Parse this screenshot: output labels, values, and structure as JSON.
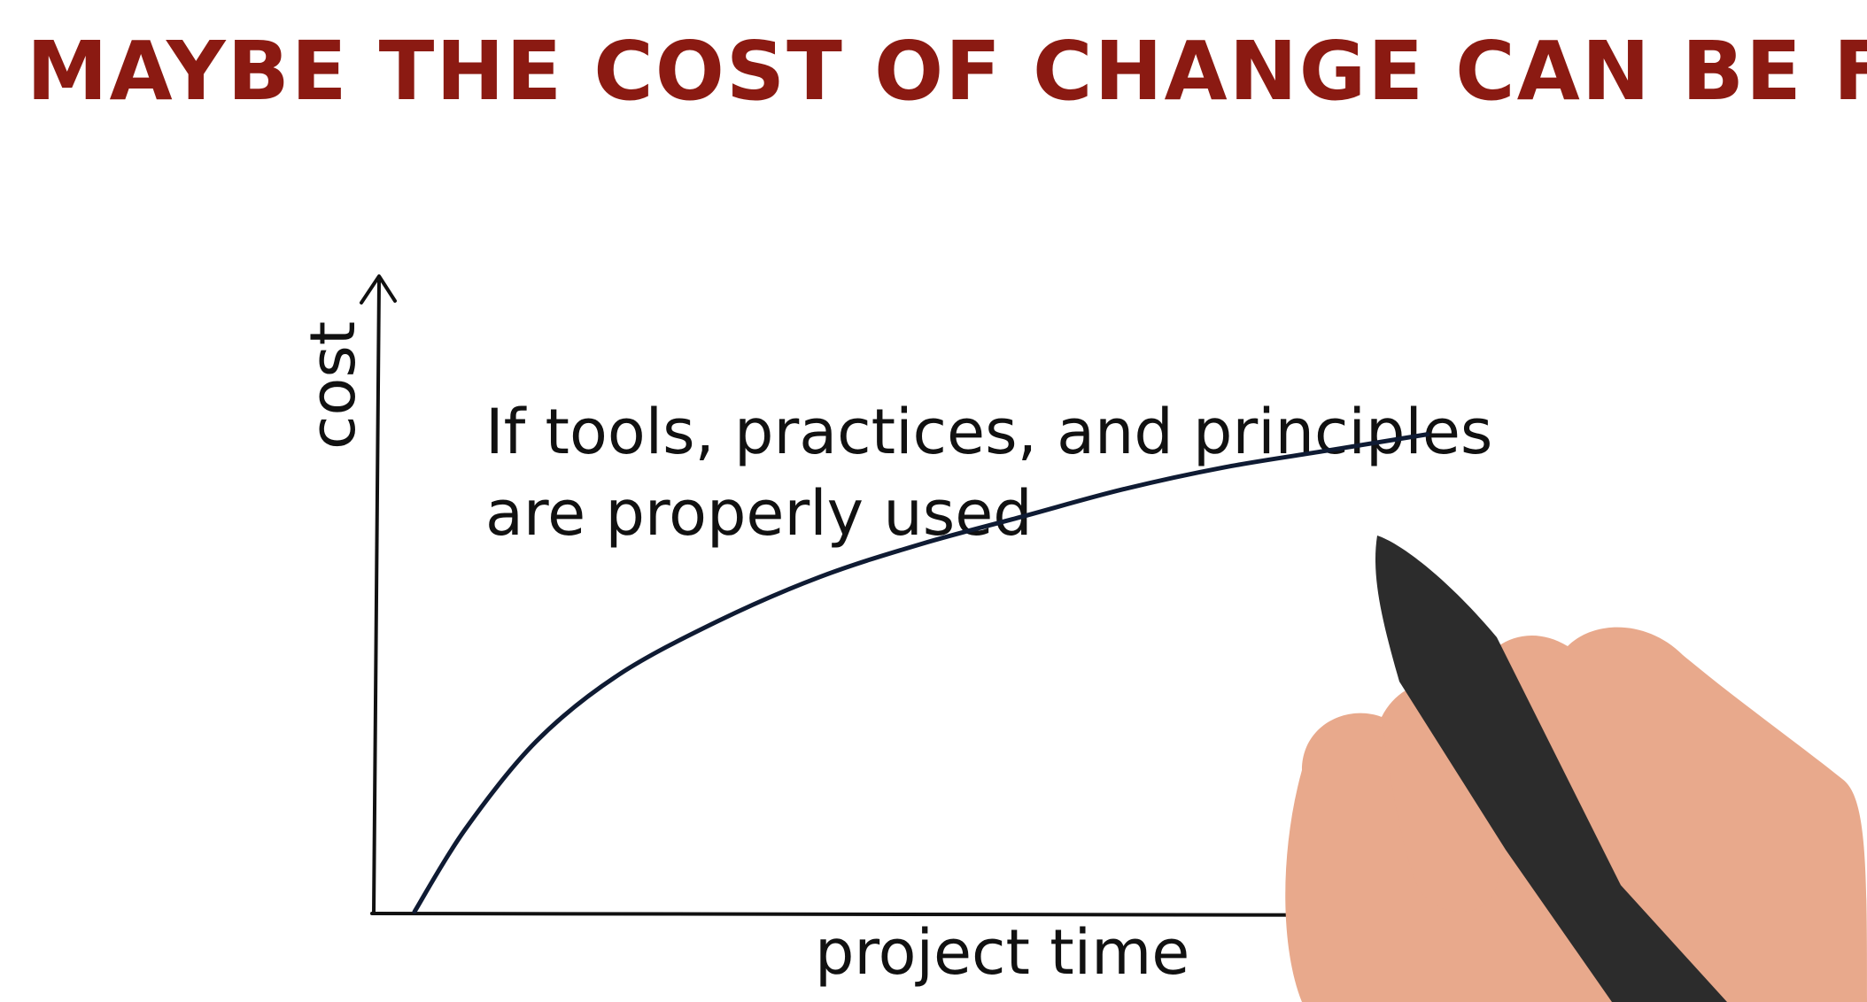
{
  "title": "MAYBE THE COST OF CHANGE CAN BE FLAT ?",
  "annotation": {
    "line1": "If tools, practices, and principles",
    "line2": "are properly used"
  },
  "colors": {
    "title": "#8b1a12",
    "ink": "#111111",
    "curve": "#0f1b33",
    "skin": "#e8a98c",
    "marker": "#2c2c2c"
  },
  "chart_data": {
    "type": "line",
    "xlabel": "project time",
    "ylabel": "cost",
    "series": [
      {
        "values": [
          [
            0.0,
            0.0
          ],
          [
            0.05,
            0.15
          ],
          [
            0.12,
            0.31
          ],
          [
            0.2,
            0.43
          ],
          [
            0.3,
            0.53
          ],
          [
            0.4,
            0.61
          ],
          [
            0.5,
            0.67
          ],
          [
            0.6,
            0.72
          ],
          [
            0.7,
            0.77
          ],
          [
            0.8,
            0.81
          ],
          [
            0.9,
            0.84
          ],
          [
            1.0,
            0.87
          ]
        ]
      }
    ],
    "grid": false,
    "legend": "none",
    "tick_labels": false
  }
}
